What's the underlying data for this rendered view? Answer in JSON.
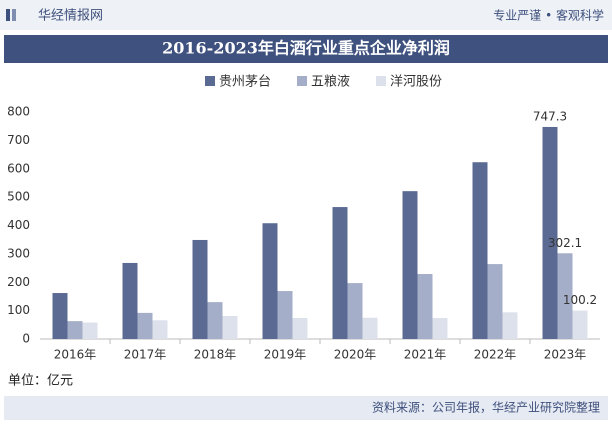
{
  "header": {
    "brand": "华经情报网",
    "slogan": "专业严谨 • 客观科学"
  },
  "chart_data": {
    "type": "bar",
    "title": "2016-2023年白酒行业重点企业净利润",
    "categories": [
      "2016年",
      "2017年",
      "2018年",
      "2019年",
      "2020年",
      "2021年",
      "2022年",
      "2023年"
    ],
    "series": [
      {
        "name": "贵州茅台",
        "color": "#5b6a92",
        "values": [
          162,
          268,
          349,
          408,
          465,
          521,
          623,
          747.3
        ],
        "value_labels": [
          null,
          null,
          null,
          null,
          null,
          null,
          null,
          "747.3"
        ]
      },
      {
        "name": "五粮液",
        "color": "#a5aec8",
        "values": [
          63,
          92,
          130,
          169,
          197,
          229,
          264,
          302.1
        ],
        "value_labels": [
          null,
          null,
          null,
          null,
          null,
          null,
          null,
          "302.1"
        ]
      },
      {
        "name": "洋河股份",
        "color": "#dde1ec",
        "values": [
          58,
          66,
          81,
          74,
          75,
          74,
          94,
          100.2
        ],
        "value_labels": [
          null,
          null,
          null,
          null,
          null,
          null,
          null,
          "100.2"
        ]
      }
    ],
    "ylim": [
      0,
      800
    ],
    "yticks": [
      0,
      100,
      200,
      300,
      400,
      500,
      600,
      700,
      800
    ],
    "grid": false,
    "unit": "单位：亿元",
    "source": "资料来源：公司年报，华经产业研究院整理"
  }
}
